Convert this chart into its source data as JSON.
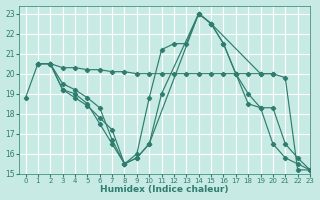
{
  "xlabel": "Humidex (Indice chaleur)",
  "ylabel": "",
  "xlim": [
    -0.5,
    23
  ],
  "ylim": [
    15,
    23.4
  ],
  "yticks": [
    15,
    16,
    17,
    18,
    19,
    20,
    21,
    22,
    23
  ],
  "xticks": [
    0,
    1,
    2,
    3,
    4,
    5,
    6,
    7,
    8,
    9,
    10,
    11,
    12,
    13,
    14,
    15,
    16,
    17,
    18,
    19,
    20,
    21,
    22,
    23
  ],
  "bg_color": "#c8eae4",
  "line_color": "#2e7d6e",
  "grid_color": "#ffffff",
  "series": [
    {
      "x": [
        0,
        1,
        2,
        3,
        4,
        5,
        6,
        7,
        8,
        9,
        10,
        11,
        12,
        13,
        14,
        15,
        16,
        17,
        18,
        19,
        20
      ],
      "y": [
        18.8,
        20.5,
        20.5,
        20.3,
        20.3,
        20.2,
        20.2,
        20.1,
        20.1,
        20.0,
        20.0,
        20.0,
        20.0,
        20.0,
        20.0,
        20.0,
        20.0,
        20.0,
        20.0,
        20.0,
        20.0
      ]
    },
    {
      "x": [
        1,
        2,
        3,
        4,
        5,
        6,
        7,
        8,
        9,
        10,
        11,
        12,
        13,
        14,
        15,
        16,
        17,
        18,
        19,
        20,
        21,
        22,
        23
      ],
      "y": [
        20.5,
        20.5,
        19.2,
        18.8,
        18.4,
        17.8,
        17.2,
        15.5,
        16.0,
        18.8,
        21.2,
        21.5,
        21.5,
        23.0,
        22.5,
        21.5,
        20.0,
        18.5,
        18.3,
        18.3,
        16.5,
        15.8,
        15.2
      ]
    },
    {
      "x": [
        1,
        2,
        3,
        4,
        5,
        6,
        7,
        8,
        9,
        10,
        11,
        14,
        15,
        19,
        20,
        21,
        22,
        23
      ],
      "y": [
        20.5,
        20.5,
        19.5,
        19.2,
        18.8,
        18.3,
        16.7,
        15.5,
        15.8,
        16.5,
        19.0,
        23.0,
        22.5,
        20.0,
        20.0,
        19.8,
        15.2,
        15.2
      ]
    },
    {
      "x": [
        1,
        2,
        3,
        4,
        5,
        6,
        7,
        8,
        9,
        10,
        14,
        15,
        16,
        17,
        18,
        19,
        20,
        21,
        22,
        23
      ],
      "y": [
        20.5,
        20.5,
        19.2,
        19.0,
        18.5,
        17.5,
        16.5,
        15.5,
        15.8,
        16.5,
        23.0,
        22.5,
        21.5,
        20.0,
        19.0,
        18.3,
        16.5,
        15.8,
        15.5,
        15.2
      ]
    }
  ]
}
